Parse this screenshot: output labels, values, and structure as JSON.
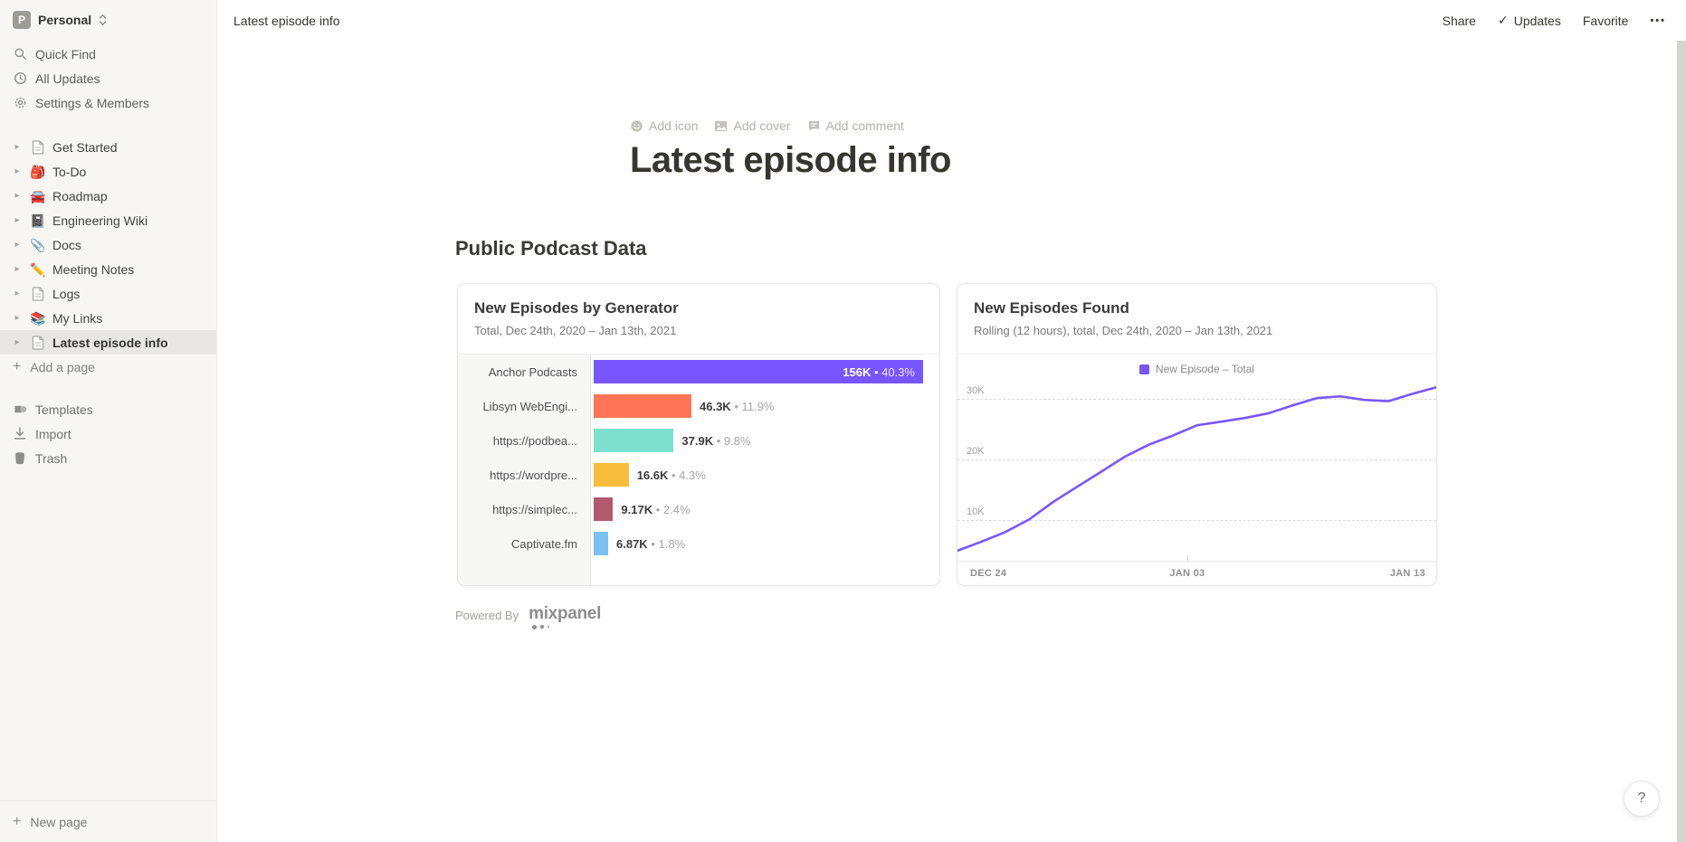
{
  "workspace": {
    "name": "Personal",
    "avatar_letter": "P"
  },
  "sidebar": {
    "menu": [
      {
        "label": "Quick Find"
      },
      {
        "label": "All Updates"
      },
      {
        "label": "Settings & Members"
      }
    ],
    "pages": [
      {
        "label": "Get Started",
        "icon": "doc"
      },
      {
        "label": "To-Do",
        "icon": "🎒"
      },
      {
        "label": "Roadmap",
        "icon": "🚘"
      },
      {
        "label": "Engineering Wiki",
        "icon": "📓"
      },
      {
        "label": "Docs",
        "icon": "📎"
      },
      {
        "label": "Meeting Notes",
        "icon": "✏️"
      },
      {
        "label": "Logs",
        "icon": "doc"
      },
      {
        "label": "My Links",
        "icon": "📚"
      },
      {
        "label": "Latest episode info",
        "icon": "doc",
        "selected": true
      }
    ],
    "add_page_label": "Add a page",
    "footer": [
      {
        "label": "Templates"
      },
      {
        "label": "Import"
      },
      {
        "label": "Trash"
      }
    ],
    "new_page_label": "New page"
  },
  "topbar": {
    "breadcrumb": "Latest episode info",
    "share_label": "Share",
    "updates_label": "Updates",
    "updates_check": "✓",
    "favorite_label": "Favorite",
    "more_label": "•••"
  },
  "page": {
    "add_icon_label": "Add icon",
    "add_cover_label": "Add cover",
    "add_comment_label": "Add comment",
    "title": "Latest episode info",
    "section_heading": "Public Podcast Data",
    "powered_by_label": "Powered By",
    "mixpanel_label": "mixpanel"
  },
  "help_label": "?",
  "chart_data": [
    {
      "type": "bar",
      "orientation": "horizontal",
      "title": "New Episodes by Generator",
      "subtitle": "Total, Dec 24th, 2020 – Jan 13th, 2021",
      "categories": [
        "Anchor Podcasts",
        "Libsyn WebEngi...",
        "https://podbea...",
        "https://wordpre...",
        "https://simplec...",
        "Captivate.fm"
      ],
      "values": [
        156000,
        46300,
        37900,
        16600,
        9170,
        6870
      ],
      "value_labels": [
        "156K",
        "46.3K",
        "37.9K",
        "16.6K",
        "9.17K",
        "6.87K"
      ],
      "pct_labels": [
        "• 40.3%",
        "• 11.9%",
        "• 9.8%",
        "• 4.3%",
        "• 2.4%",
        "• 1.8%"
      ],
      "colors": [
        "#7856ff",
        "#ff7557",
        "#7de0cd",
        "#f8bc3b",
        "#b25971",
        "#7cc0f2"
      ],
      "value_label_inside_first_bar": true
    },
    {
      "type": "line",
      "title": "New Episodes Found",
      "subtitle": "Rolling (12 hours), total, Dec 24th, 2020 – Jan 13th, 2021",
      "legend": [
        "New Episode – Total"
      ],
      "line_color": "#7856ff",
      "x_ticks": [
        "DEC 24",
        "JAN 03",
        "JAN 13"
      ],
      "y_ticks": [
        "30K",
        "20K",
        "10K"
      ],
      "x_range": [
        "Dec 24, 2020",
        "Jan 13, 2021"
      ],
      "points_k": [
        4.8,
        6.3,
        7.9,
        10.0,
        12.9,
        15.4,
        17.9,
        20.4,
        22.4,
        23.9,
        25.6,
        26.2,
        26.8,
        27.6,
        28.9,
        30.1,
        30.4,
        29.8,
        29.6,
        30.8,
        31.9
      ],
      "y_axis_baseline_k": 3.1,
      "grid": "dashed-horizontal"
    }
  ]
}
